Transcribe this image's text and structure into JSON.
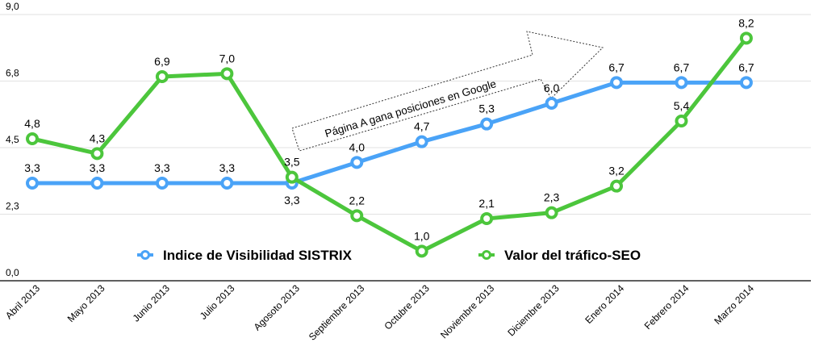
{
  "chart_data": {
    "type": "line",
    "title": "",
    "xlabel": "",
    "ylabel": "",
    "ylim": [
      0,
      9
    ],
    "yticks": [
      "0,0",
      "2,3",
      "4,5",
      "6,8",
      "9,0"
    ],
    "ytick_values": [
      0,
      2.25,
      4.5,
      6.75,
      9
    ],
    "grid": true,
    "legend_position": "bottom-center",
    "categories": [
      "Abril 2013",
      "Mayo 2013",
      "Junio 2013",
      "Julio 2013",
      "Agosoto 2013",
      "Septiembre 2013",
      "Octubre 2013",
      "Noviembre 2013",
      "Diciembre 2013",
      "Enero 2014",
      "Febrero 2014",
      "Marzo 2014"
    ],
    "series": [
      {
        "name": "Indice de Visibilidad SISTRIX",
        "color": "#4aa3f7",
        "values": [
          3.3,
          3.3,
          3.3,
          3.3,
          3.3,
          4.0,
          4.7,
          5.3,
          6.0,
          6.7,
          6.7,
          6.7
        ],
        "labels": [
          "3,3",
          "3,3",
          "3,3",
          "3,3",
          "3,3",
          "4,0",
          "4,7",
          "5,3",
          "6,0",
          "6,7",
          "6,7",
          "6,7"
        ]
      },
      {
        "name": "Valor del tráfico-SEO",
        "color": "#4cc63c",
        "values": [
          4.8,
          4.3,
          6.9,
          7.0,
          3.5,
          2.2,
          1.0,
          2.1,
          2.3,
          3.2,
          5.4,
          8.2
        ],
        "labels": [
          "4,8",
          "4,3",
          "6,9",
          "7,0",
          "3,5",
          "2,2",
          "1,0",
          "2,1",
          "2,3",
          "3,2",
          "5,4",
          "8,2"
        ]
      }
    ],
    "annotation": "Página A gana posiciones en Google"
  }
}
